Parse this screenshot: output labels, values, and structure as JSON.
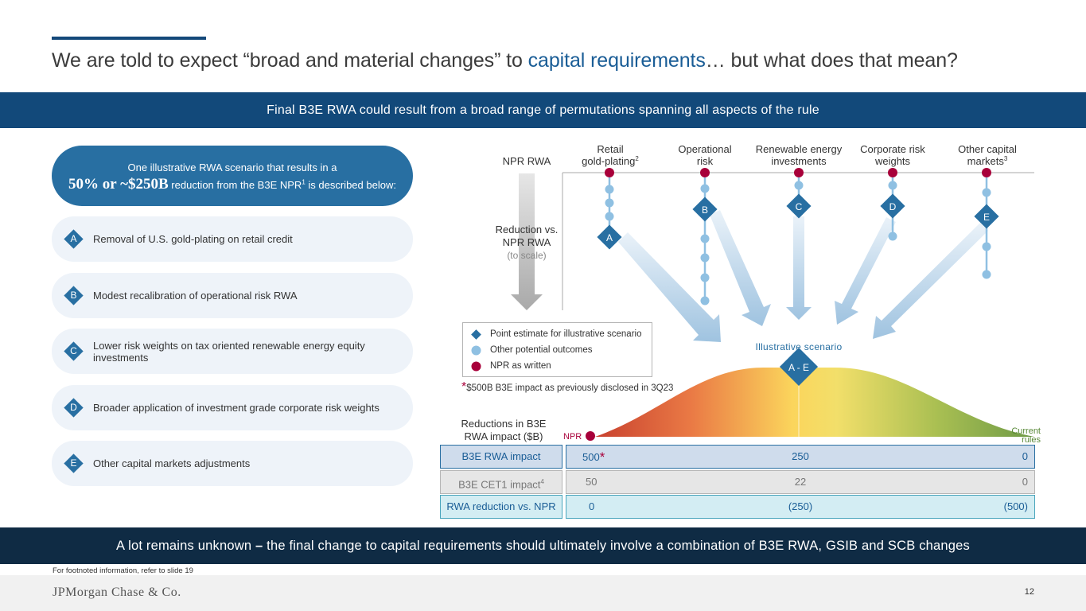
{
  "header": {
    "title_pre": "We are told to expect “broad and material changes” to ",
    "title_highlight": "capital requirements",
    "title_post": "… but what does that mean?",
    "banner": "Final B3E RWA could result from a broad range of permutations spanning all aspects of the rule"
  },
  "scenario": {
    "line1": "One illustrative RWA scenario that results in a",
    "big": "50% or ~$250B",
    "line2_post": " reduction from the B3E NPR",
    "line2_sup": "1",
    "line2_end": " is described below:"
  },
  "items": [
    {
      "letter": "A",
      "text": "Removal of U.S. gold-plating on retail credit"
    },
    {
      "letter": "B",
      "text": "Modest recalibration of operational risk RWA"
    },
    {
      "letter": "C",
      "text": "Lower risk weights on tax oriented renewable energy equity investments"
    },
    {
      "letter": "D",
      "text": "Broader application of investment grade corporate risk weights"
    },
    {
      "letter": "E",
      "text": "Other capital markets adjustments"
    }
  ],
  "chart_data": {
    "type": "dot-strip",
    "row_label": "NPR RWA",
    "axis_label_line1": "Reduction vs.",
    "axis_label_line2": "NPR RWA",
    "axis_label_line3": "(to scale)",
    "columns": [
      {
        "letter": "A",
        "label_line1": "Retail",
        "label_line2": "gold-plating",
        "sup": "2",
        "other_outcomes": 4,
        "point_estimate_step": 5
      },
      {
        "letter": "B",
        "label_line1": "Operational",
        "label_line2": "risk",
        "sup": "",
        "other_outcomes": 5,
        "point_estimate_step": 2
      },
      {
        "letter": "C",
        "label_line1": "Renewable energy",
        "label_line2": "investments",
        "sup": "",
        "other_outcomes": 1,
        "point_estimate_step": 2
      },
      {
        "letter": "D",
        "label_line1": "Corporate risk",
        "label_line2": "weights",
        "sup": "",
        "other_outcomes": 2,
        "point_estimate_step": 2
      },
      {
        "letter": "E",
        "label_line1": "Other capital",
        "label_line2": "markets",
        "sup": "3",
        "other_outcomes": 3,
        "point_estimate_step": 3
      }
    ],
    "illustrative_label": "Illustrative scenario",
    "scenario_marker": "A - E",
    "npr_label": "NPR",
    "current_rules_line1": "Current",
    "current_rules_line2": "rules"
  },
  "legend": {
    "point_estimate": "Point estimate for illustrative scenario",
    "other_outcomes": "Other potential outcomes",
    "npr_written": "NPR as written"
  },
  "star_note": "$500B B3E impact as previously disclosed in 3Q23",
  "reductions_label_line1": "Reductions in B3E",
  "reductions_label_line2": "RWA impact ($B)",
  "table": {
    "rows": [
      {
        "label": "B3E RWA impact",
        "sup": "",
        "v1": "500",
        "v2": "250",
        "v3": "0"
      },
      {
        "label": "B3E CET1 impact",
        "sup": "4",
        "v1": "50",
        "v2": "22",
        "v3": "0"
      },
      {
        "label": "RWA reduction vs. NPR",
        "sup": "",
        "v1": "0",
        "v2": "(250)",
        "v3": "(500)"
      }
    ]
  },
  "bottom_band_pre": "A lot remains unknown ",
  "bottom_band_dash": "–",
  "bottom_band_post": " the final change to capital requirements should ultimately involve a combination of B3E RWA, GSIB and SCB changes",
  "footnote": "For footnoted information, refer to slide 19",
  "logo": "JPMorgan Chase & Co.",
  "page_number": "12",
  "colors": {
    "navy": "#12497a",
    "blue": "#286fa2",
    "light_blue": "#8fc0e2",
    "crimson": "#a8003a",
    "dark_band": "#0f2b44"
  }
}
